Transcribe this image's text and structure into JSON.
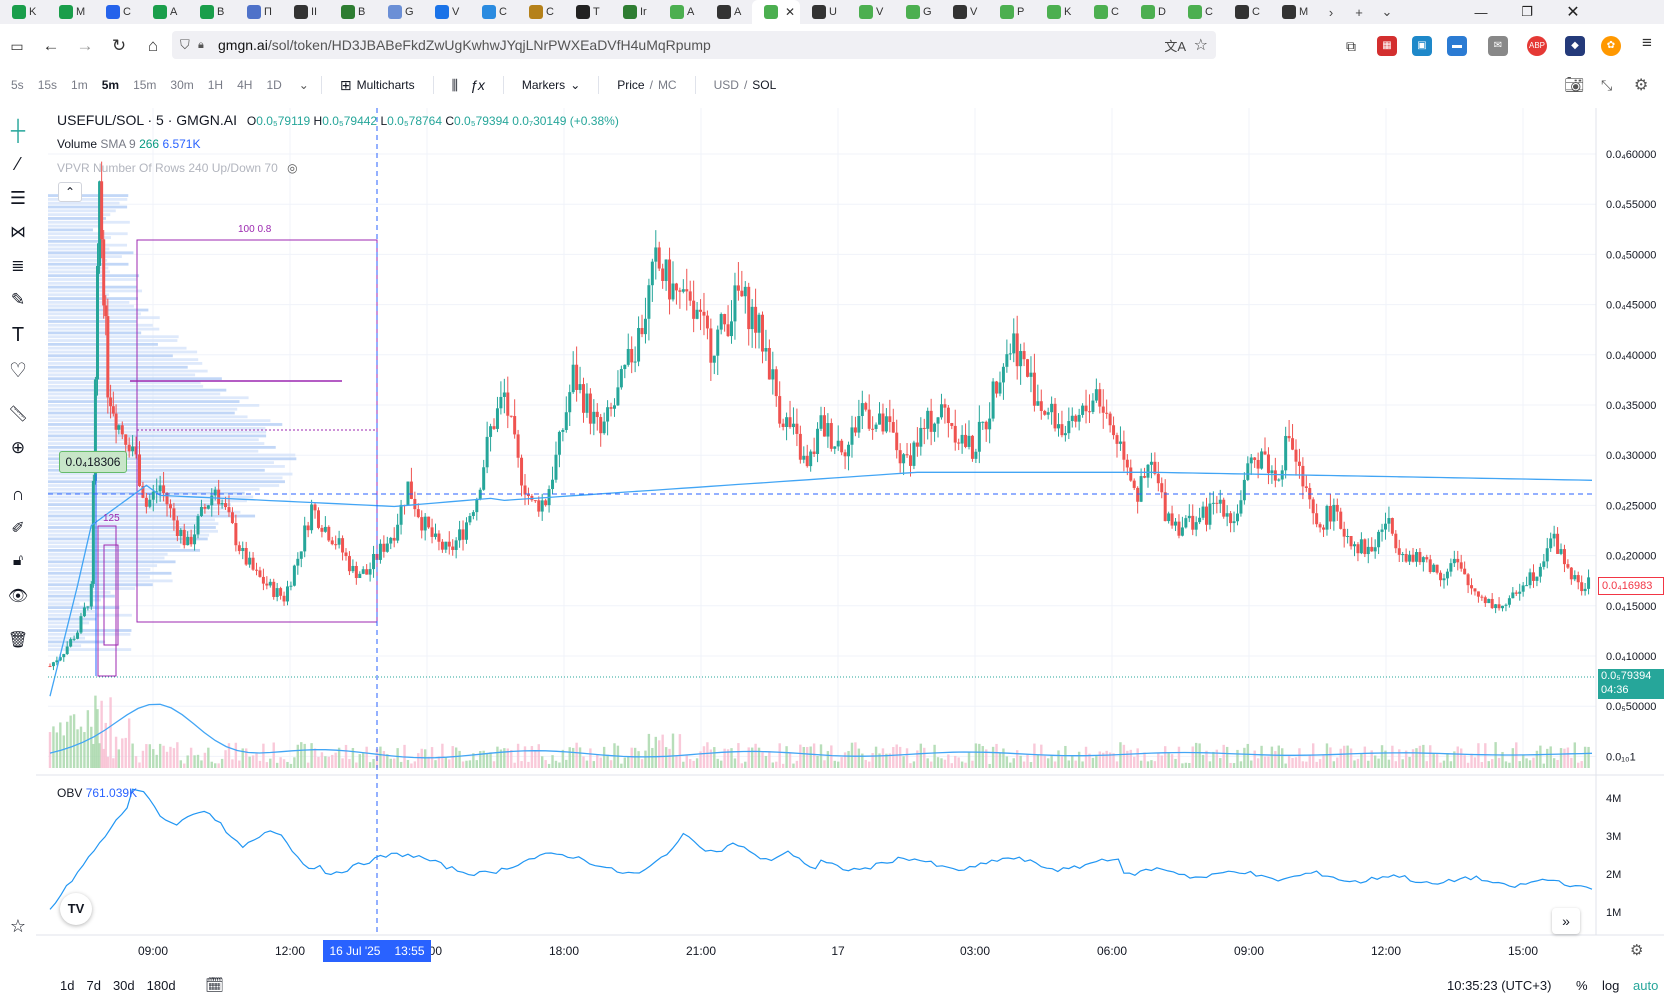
{
  "browser": {
    "tabs": [
      {
        "label": "K",
        "color": "#1a9e4b"
      },
      {
        "label": "M",
        "color": "#1a9e4b"
      },
      {
        "label": "C",
        "color": "#2563eb"
      },
      {
        "label": "A",
        "color": "#1a9e4b"
      },
      {
        "label": "B",
        "color": "#1a9e4b"
      },
      {
        "label": "П",
        "color": "#4f72c9"
      },
      {
        "label": "II",
        "color": "#333333"
      },
      {
        "label": "B",
        "color": "#2e7d32"
      },
      {
        "label": "G",
        "color": "#6b8fd6"
      },
      {
        "label": "V",
        "color": "#1a73e8"
      },
      {
        "label": "C",
        "color": "#2a8be0"
      },
      {
        "label": "C",
        "color": "#b5811a"
      },
      {
        "label": "T",
        "color": "#222222"
      },
      {
        "label": "Ir",
        "color": "#2e7d32"
      },
      {
        "label": "A",
        "color": "#4caf50"
      },
      {
        "label": "A",
        "color": "#333333"
      },
      {
        "label": "",
        "color": "#4caf50"
      },
      {
        "label": "U",
        "color": "#333333"
      },
      {
        "label": "V",
        "color": "#4caf50"
      },
      {
        "label": "G",
        "color": "#4caf50"
      },
      {
        "label": "V",
        "color": "#333333"
      },
      {
        "label": "P",
        "color": "#4caf50"
      },
      {
        "label": "K",
        "color": "#4caf50"
      },
      {
        "label": "C",
        "color": "#4caf50"
      },
      {
        "label": "D",
        "color": "#4caf50"
      },
      {
        "label": "C",
        "color": "#4caf50"
      },
      {
        "label": "C",
        "color": "#333333"
      },
      {
        "label": "M",
        "color": "#333333"
      }
    ],
    "active_tab_index": 16,
    "url_domain": "gmgn.ai",
    "url_path": "/sol/token/HD3JBABeFkdZwUgKwhwJYqjLNrPWXEaDVfH4uMqRpump"
  },
  "toolbar": {
    "timeframes": [
      "5s",
      "15s",
      "1m",
      "5m",
      "15m",
      "30m",
      "1H",
      "4H",
      "1D"
    ],
    "selected_timeframe": "5m",
    "multicharts_label": "Multicharts",
    "markers_label": "Markers",
    "price_label": "Price",
    "mc_label": "MC",
    "usd_label": "USD",
    "sol_label": "SOL"
  },
  "legend": {
    "symbol": "USEFUL/SOL · 5 · GMGN.AI",
    "o_label": "O",
    "o_value": "0.0₅79119",
    "h_label": "H",
    "h_value": "0.0₅79442",
    "l_label": "L",
    "l_value": "0.0₅78764",
    "c_label": "C",
    "c_value": "0.0₅79394",
    "change": "0.0₇30149 (+0.38%)",
    "volume_label": "Volume",
    "volume_sma": "SMA 9",
    "volume_a": "266",
    "volume_b": "6.571K",
    "vpvr_label": "VPVR Number Of Rows 240 Up/Down 70",
    "obv_label": "OBV",
    "obv_value": "761.039K"
  },
  "chart_data": {
    "type": "candlestick",
    "y_ticks": [
      "0.0₄60000",
      "0.0₄55000",
      "0.0₄50000",
      "0.0₄45000",
      "0.0₄40000",
      "0.0₄35000",
      "0.0₄30000",
      "0.0₄25000",
      "0.0₄20000",
      "0.0₄15000",
      "0.0₄10000",
      "0.0₅50000",
      "0.0₁₀1"
    ],
    "x_ticks": [
      "09:00",
      "12:00",
      "15:00",
      "18:00",
      "21:00",
      "17",
      "03:00",
      "06:00",
      "09:00",
      "12:00",
      "15:00"
    ],
    "obv_ticks": [
      "4M",
      "3M",
      "2M",
      "1M"
    ],
    "price_tag_last": "0.0₄16983",
    "price_tag_current": "0.0₅79394",
    "countdown": "04:36",
    "crosshair_price": "0.0₄18306",
    "crosshair_date": "16 Jul '25",
    "crosshair_time": "13:55",
    "vp_box_label": "100 0.8",
    "vp_small_label": "125",
    "close_path": [
      [
        0,
        9e-06
      ],
      [
        10,
        1.05e-05
      ],
      [
        20,
        1.25e-05
      ],
      [
        30,
        1.65e-05
      ],
      [
        36,
        5.7e-05
      ],
      [
        42,
        3.7e-05
      ],
      [
        50,
        3.3e-05
      ],
      [
        60,
        3.1e-05
      ],
      [
        70,
        2.5e-05
      ],
      [
        80,
        2.7e-05
      ],
      [
        90,
        2.35e-05
      ],
      [
        100,
        2.1e-05
      ],
      [
        110,
        2.4e-05
      ],
      [
        120,
        2.68e-05
      ],
      [
        130,
        2.35e-05
      ],
      [
        140,
        2e-05
      ],
      [
        150,
        1.8e-05
      ],
      [
        160,
        1.68e-05
      ],
      [
        170,
        1.58e-05
      ],
      [
        180,
        1.98e-05
      ],
      [
        190,
        2.48e-05
      ],
      [
        200,
        2.28e-05
      ],
      [
        210,
        2.1e-05
      ],
      [
        220,
        1.85e-05
      ],
      [
        230,
        1.82e-05
      ],
      [
        240,
        2.05e-05
      ],
      [
        250,
        2.25e-05
      ],
      [
        260,
        2.7e-05
      ],
      [
        270,
        2.35e-05
      ],
      [
        280,
        2.13e-05
      ],
      [
        290,
        2.03e-05
      ],
      [
        300,
        2.25e-05
      ],
      [
        310,
        2.6e-05
      ],
      [
        320,
        3.25e-05
      ],
      [
        330,
        3.6e-05
      ],
      [
        340,
        2.9e-05
      ],
      [
        350,
        2.5e-05
      ],
      [
        360,
        2.55e-05
      ],
      [
        370,
        3.1e-05
      ],
      [
        380,
        3.8e-05
      ],
      [
        390,
        3.5e-05
      ],
      [
        400,
        3.2e-05
      ],
      [
        410,
        3.5e-05
      ],
      [
        420,
        3.9e-05
      ],
      [
        430,
        4.3e-05
      ],
      [
        440,
        4.9e-05
      ],
      [
        450,
        4.7e-05
      ],
      [
        460,
        4.5e-05
      ],
      [
        470,
        4.35e-05
      ],
      [
        480,
        4.1e-05
      ],
      [
        490,
        4.3e-05
      ],
      [
        500,
        4.6e-05
      ],
      [
        510,
        4.4e-05
      ],
      [
        520,
        4.05e-05
      ],
      [
        530,
        3.45e-05
      ],
      [
        540,
        3.2e-05
      ],
      [
        550,
        2.85e-05
      ],
      [
        560,
        3.3e-05
      ],
      [
        570,
        3.15e-05
      ],
      [
        580,
        3.1e-05
      ],
      [
        590,
        3.5e-05
      ],
      [
        600,
        3.3e-05
      ],
      [
        610,
        3.25e-05
      ],
      [
        620,
        2.9e-05
      ],
      [
        630,
        3.15e-05
      ],
      [
        640,
        3.35e-05
      ],
      [
        650,
        3.45e-05
      ],
      [
        660,
        3.2e-05
      ],
      [
        670,
        3.05e-05
      ],
      [
        680,
        3.35e-05
      ],
      [
        690,
        3.9e-05
      ],
      [
        700,
        4.15e-05
      ],
      [
        710,
        3.8e-05
      ],
      [
        720,
        3.5e-05
      ],
      [
        730,
        3.35e-05
      ],
      [
        740,
        3.2e-05
      ],
      [
        750,
        3.4e-05
      ],
      [
        760,
        3.65e-05
      ],
      [
        770,
        3.3e-05
      ],
      [
        780,
        3.05e-05
      ],
      [
        790,
        2.6e-05
      ],
      [
        800,
        2.9e-05
      ],
      [
        810,
        2.45e-05
      ],
      [
        820,
        2.3e-05
      ],
      [
        830,
        2.35e-05
      ],
      [
        840,
        2.4e-05
      ],
      [
        850,
        2.55e-05
      ],
      [
        860,
        2.35e-05
      ],
      [
        870,
        2.8e-05
      ],
      [
        880,
        3.05e-05
      ],
      [
        890,
        2.75e-05
      ],
      [
        900,
        3.2e-05
      ],
      [
        910,
        2.7e-05
      ],
      [
        920,
        2.25e-05
      ],
      [
        930,
        2.45e-05
      ],
      [
        940,
        2.25e-05
      ],
      [
        950,
        2.1e-05
      ],
      [
        960,
        2.05e-05
      ],
      [
        970,
        2.35e-05
      ],
      [
        980,
        2.1e-05
      ],
      [
        990,
        1.95e-05
      ],
      [
        1000,
        1.95e-05
      ],
      [
        1010,
        1.8e-05
      ],
      [
        1020,
        1.95e-05
      ],
      [
        1030,
        1.7e-05
      ],
      [
        1040,
        1.6e-05
      ],
      [
        1050,
        1.5e-05
      ],
      [
        1060,
        1.52e-05
      ],
      [
        1070,
        1.75e-05
      ],
      [
        1080,
        1.85e-05
      ],
      [
        1090,
        2.2e-05
      ],
      [
        1100,
        1.95e-05
      ],
      [
        1110,
        1.68e-05
      ],
      [
        1120,
        1.72e-05
      ]
    ]
  },
  "bottombar": {
    "ranges": [
      "1d",
      "7d",
      "30d",
      "180d"
    ],
    "clock": "10:35:23 (UTC+3)",
    "pct_label": "%",
    "log_label": "log",
    "auto_label": "auto"
  }
}
